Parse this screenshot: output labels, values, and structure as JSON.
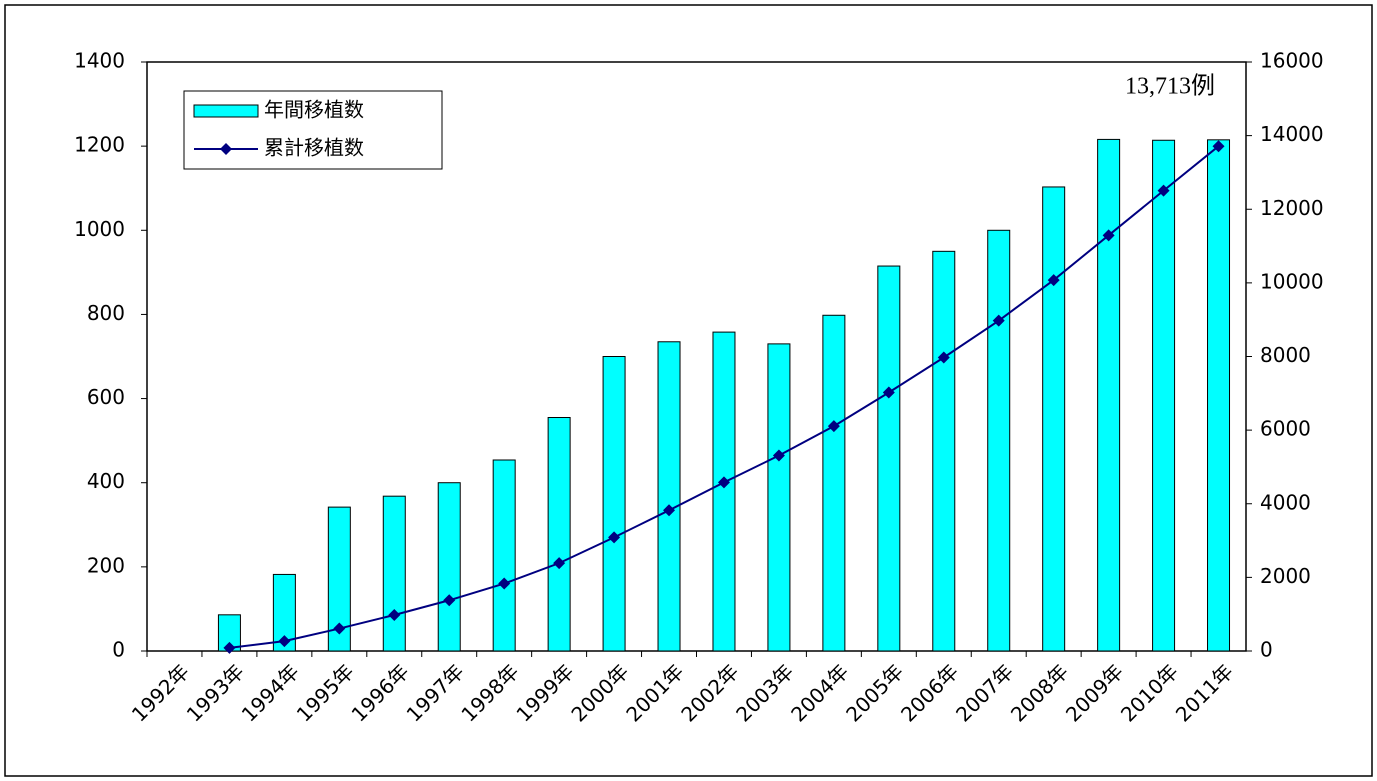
{
  "chart_data": {
    "type": "bar_line",
    "categories": [
      "1992年",
      "1993年",
      "1994年",
      "1995年",
      "1996年",
      "1997年",
      "1998年",
      "1999年",
      "2000年",
      "2001年",
      "2002年",
      "2003年",
      "2004年",
      "2005年",
      "2006年",
      "2007年",
      "2008年",
      "2009年",
      "2010年",
      "2011年"
    ],
    "series": [
      {
        "name": "年間移植数",
        "color": "#00ffff",
        "type": "bar",
        "values": [
          0,
          86,
          182,
          342,
          368,
          400,
          454,
          555,
          700,
          735,
          758,
          730,
          798,
          915,
          950,
          1000,
          1103,
          1216,
          1214,
          1215
        ]
      },
      {
        "name": "累計移植数",
        "color": "#000080",
        "type": "line",
        "axis": "y2",
        "values": [
          null,
          86,
          268,
          610,
          978,
          1378,
          1832,
          2387,
          3087,
          3822,
          4580,
          5310,
          6108,
          7023,
          7973,
          8973,
          10076,
          11292,
          12506,
          13713
        ]
      }
    ],
    "annotation": "13,713例",
    "ylim": [
      0,
      1400
    ],
    "yticks": [
      0,
      200,
      400,
      600,
      800,
      1000,
      1200,
      1400
    ],
    "y2lim": [
      0,
      16000
    ],
    "y2ticks": [
      0,
      2000,
      4000,
      6000,
      8000,
      10000,
      12000,
      14000,
      16000
    ],
    "legend": "upper left"
  }
}
